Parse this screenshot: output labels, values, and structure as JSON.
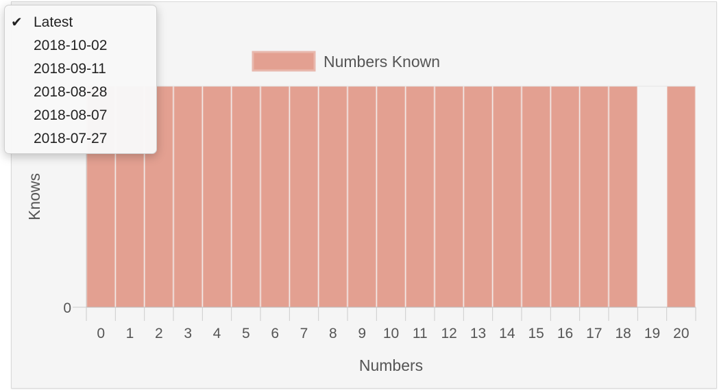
{
  "dropdown": {
    "items": [
      {
        "label": "Latest",
        "selected": true
      },
      {
        "label": "2018-10-02",
        "selected": false
      },
      {
        "label": "2018-09-11",
        "selected": false
      },
      {
        "label": "2018-08-28",
        "selected": false
      },
      {
        "label": "2018-08-07",
        "selected": false
      },
      {
        "label": "2018-07-27",
        "selected": false
      }
    ],
    "check_icon": "checkmark-icon"
  },
  "colors": {
    "bar_fill": "#e3a091",
    "bar_stroke": "#e8b8ad",
    "axis": "#cccccc",
    "text": "#555555"
  },
  "chart_data": {
    "type": "bar",
    "categories": [
      "0",
      "1",
      "2",
      "3",
      "4",
      "5",
      "6",
      "7",
      "8",
      "9",
      "10",
      "11",
      "12",
      "13",
      "14",
      "15",
      "16",
      "17",
      "18",
      "19",
      "20"
    ],
    "series": [
      {
        "name": "Numbers Known",
        "values": [
          1,
          1,
          1,
          1,
          1,
          1,
          1,
          1,
          1,
          1,
          1,
          1,
          1,
          1,
          1,
          1,
          1,
          1,
          1,
          0,
          1
        ]
      }
    ],
    "xlabel": "Numbers",
    "ylabel": "Knows",
    "y_tick_labels": [
      "0"
    ],
    "ylim": [
      0,
      1
    ],
    "legend": "top-center",
    "grid": false
  }
}
